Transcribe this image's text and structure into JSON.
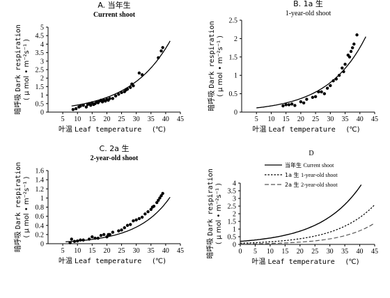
{
  "chart_data": [
    {
      "type": "scatter",
      "panel_letter": "A.",
      "title_cn": "当年生",
      "title_en": "Current shoot",
      "xlabel_cn": "叶温",
      "xlabel_en": "Leaf temperature",
      "xlabel_unit": "(℃)",
      "ylabel_cn": "暗呼吸",
      "ylabel_en": "Dark respiration",
      "ylabel_unit": "( μ mol • m⁻²s⁻¹ )",
      "xlim": [
        0,
        45
      ],
      "ylim": [
        0,
        5
      ],
      "xticks": [
        "5",
        "10",
        "15",
        "20",
        "25",
        "30",
        "35",
        "40",
        "45"
      ],
      "yticks": [
        "0",
        "0.5",
        "1",
        "1.5",
        "2",
        "2.5",
        "3",
        "3.5",
        "4",
        "4.5",
        "5"
      ],
      "points": [
        [
          8.5,
          0.15
        ],
        [
          9.5,
          0.2
        ],
        [
          10.5,
          0.3
        ],
        [
          11,
          0.35
        ],
        [
          12,
          0.4
        ],
        [
          13,
          0.3
        ],
        [
          13.5,
          0.45
        ],
        [
          14,
          0.5
        ],
        [
          14.5,
          0.4
        ],
        [
          15,
          0.55
        ],
        [
          15.5,
          0.45
        ],
        [
          16,
          0.5
        ],
        [
          16.5,
          0.6
        ],
        [
          17,
          0.55
        ],
        [
          17.5,
          0.65
        ],
        [
          18,
          0.7
        ],
        [
          18.5,
          0.6
        ],
        [
          19,
          0.7
        ],
        [
          19.5,
          0.65
        ],
        [
          20,
          0.75
        ],
        [
          20.5,
          0.7
        ],
        [
          21,
          0.8
        ],
        [
          22,
          0.8
        ],
        [
          23,
          0.95
        ],
        [
          24,
          1.05
        ],
        [
          25,
          1.15
        ],
        [
          26,
          1.2
        ],
        [
          26.5,
          1.3
        ],
        [
          27,
          1.35
        ],
        [
          28,
          1.45
        ],
        [
          28.5,
          1.65
        ],
        [
          29,
          1.55
        ],
        [
          31,
          2.3
        ],
        [
          32,
          2.2
        ],
        [
          37.5,
          3.2
        ],
        [
          38.5,
          3.6
        ],
        [
          39,
          3.8
        ]
      ],
      "curve": {
        "a": 0.2,
        "b": 0.0733,
        "x_range": [
          8,
          41.5
        ]
      }
    },
    {
      "type": "scatter",
      "panel_letter": "B.",
      "title_cn": "1a 生",
      "title_en": "1-year-old shoot",
      "xlabel_cn": "叶温",
      "xlabel_en": "Leaf temperature",
      "xlabel_unit": "(℃)",
      "ylabel_cn": "暗呼吸",
      "ylabel_en": "Dark respiration",
      "ylabel_unit": "( μ mol • m⁻²s⁻¹ )",
      "xlim": [
        0,
        45
      ],
      "ylim": [
        0,
        2.5
      ],
      "xticks": [
        "5",
        "10",
        "15",
        "20",
        "25",
        "30",
        "35",
        "40",
        "45"
      ],
      "yticks": [
        "0",
        "0.5",
        "1",
        "1.5",
        "2",
        "2.5"
      ],
      "points": [
        [
          14,
          0.17
        ],
        [
          15,
          0.2
        ],
        [
          16,
          0.2
        ],
        [
          17,
          0.22
        ],
        [
          18,
          0.18
        ],
        [
          20,
          0.28
        ],
        [
          21,
          0.25
        ],
        [
          22,
          0.35
        ],
        [
          24,
          0.4
        ],
        [
          25,
          0.42
        ],
        [
          26,
          0.55
        ],
        [
          27,
          0.55
        ],
        [
          28,
          0.5
        ],
        [
          29,
          0.65
        ],
        [
          30,
          0.72
        ],
        [
          31,
          0.85
        ],
        [
          32,
          0.9
        ],
        [
          33,
          1.0
        ],
        [
          34,
          1.2
        ],
        [
          34.5,
          1.1
        ],
        [
          35,
          1.3
        ],
        [
          36,
          1.55
        ],
        [
          36.5,
          1.5
        ],
        [
          37,
          1.65
        ],
        [
          37.5,
          1.75
        ],
        [
          38,
          1.85
        ],
        [
          39,
          2.1
        ]
      ],
      "curve": {
        "a": 0.0775,
        "b": 0.078,
        "x_range": [
          5,
          42
        ]
      }
    },
    {
      "type": "scatter",
      "panel_letter": "C.",
      "title_cn": "2a 生",
      "title_en": "2-year-old shoot",
      "xlabel_cn": "叶温",
      "xlabel_en": "Leaf temperature",
      "xlabel_unit": "(℃)",
      "ylabel_cn": "暗呼吸",
      "ylabel_en": "Dark respiration",
      "ylabel_unit": "( μ mol • m⁻²s⁻¹ )",
      "xlim": [
        0,
        45
      ],
      "ylim": [
        0,
        1.6
      ],
      "xticks": [
        "5",
        "10",
        "15",
        "20",
        "25",
        "30",
        "35",
        "40",
        "45"
      ],
      "yticks": [
        "0",
        "0.2",
        "0.4",
        "0.6",
        "0.8",
        "1",
        "1.2",
        "1.4",
        "1.6"
      ],
      "points": [
        [
          7.5,
          0.02
        ],
        [
          8,
          0.1
        ],
        [
          9,
          0.05
        ],
        [
          10,
          0.06
        ],
        [
          11,
          0.08
        ],
        [
          12,
          0.08
        ],
        [
          14,
          0.1
        ],
        [
          15,
          0.15
        ],
        [
          16,
          0.12
        ],
        [
          17,
          0.12
        ],
        [
          18,
          0.18
        ],
        [
          19,
          0.2
        ],
        [
          20,
          0.15
        ],
        [
          20.5,
          0.2
        ],
        [
          21,
          0.2
        ],
        [
          22,
          0.25
        ],
        [
          24,
          0.28
        ],
        [
          25,
          0.3
        ],
        [
          26,
          0.35
        ],
        [
          27,
          0.4
        ],
        [
          28,
          0.42
        ],
        [
          29,
          0.5
        ],
        [
          30,
          0.52
        ],
        [
          31,
          0.55
        ],
        [
          32,
          0.58
        ],
        [
          33,
          0.65
        ],
        [
          34,
          0.7
        ],
        [
          35,
          0.75
        ],
        [
          35.5,
          0.8
        ],
        [
          36,
          0.82
        ],
        [
          37,
          0.9
        ],
        [
          37.5,
          0.95
        ],
        [
          38,
          1.0
        ],
        [
          38.5,
          1.05
        ],
        [
          39,
          1.1
        ]
      ],
      "curve": {
        "a": 0.0245,
        "b": 0.0898,
        "x_range": [
          6,
          41.5
        ]
      }
    },
    {
      "type": "line",
      "panel_letter": "D",
      "xlabel_cn": "叶温",
      "xlabel_en": "Leaf temperature",
      "xlabel_unit": "(℃)",
      "ylabel_cn": "暗呼吸",
      "ylabel_en": "Dark respiration",
      "ylabel_unit": "( μ mol • m⁻²s⁻¹ )",
      "xlim": [
        0,
        45
      ],
      "ylim": [
        0,
        4
      ],
      "xticks": [
        "0",
        "5",
        "10",
        "15",
        "20",
        "25",
        "30",
        "35",
        "40",
        "45"
      ],
      "yticks": [
        "0",
        "0.5",
        "1",
        "1.5",
        "2",
        "2.5",
        "3",
        "3.5",
        "4"
      ],
      "legend": [
        {
          "cn": "当年生",
          "en": "Current shoot",
          "style": "solid"
        },
        {
          "cn": "1a 生",
          "en": "1-year-old shoot",
          "style": "dotted"
        },
        {
          "cn": "2a 生",
          "en": "2-year-old shoot",
          "style": "dashed"
        }
      ],
      "series": [
        {
          "name": "当年生 Current shoot",
          "style": "solid",
          "a": 0.2,
          "b": 0.0733,
          "x_range": [
            0,
            40.5
          ]
        },
        {
          "name": "1a 生 1-year-old shoot",
          "style": "dotted",
          "a": 0.0775,
          "b": 0.078,
          "x_range": [
            0,
            45
          ]
        },
        {
          "name": "2a 生 2-year-old shoot",
          "style": "dashed",
          "a": 0.0245,
          "b": 0.0898,
          "x_range": [
            0,
            45
          ]
        }
      ]
    }
  ]
}
